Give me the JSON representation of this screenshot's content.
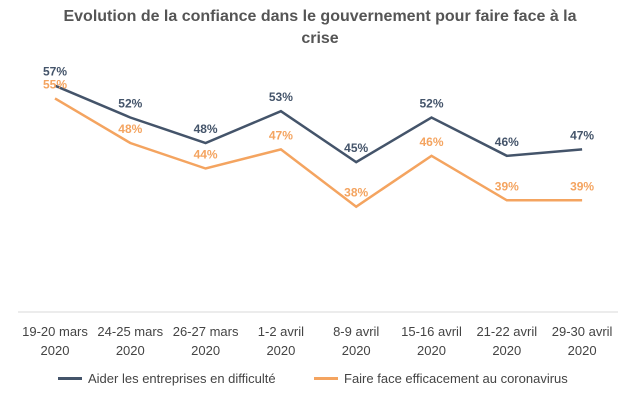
{
  "chart_data": {
    "type": "line",
    "title": "Evolution de la confiance dans le gouvernement pour faire face à la crise",
    "categories": [
      [
        "19-20 mars",
        "2020"
      ],
      [
        "24-25 mars",
        "2020"
      ],
      [
        "26-27 mars",
        "2020"
      ],
      [
        "1-2 avril",
        "2020"
      ],
      [
        "8-9 avril",
        "2020"
      ],
      [
        "15-16 avril",
        "2020"
      ],
      [
        "21-22 avril",
        "2020"
      ],
      [
        "29-30 avril",
        "2020"
      ]
    ],
    "series": [
      {
        "name": "Aider les entreprises en difficulté",
        "color": "#44546A",
        "values": [
          57,
          52,
          48,
          53,
          45,
          52,
          46,
          47
        ],
        "labels": [
          "57%",
          "52%",
          "48%",
          "53%",
          "45%",
          "52%",
          "46%",
          "47%"
        ]
      },
      {
        "name": "Faire face efficacement au coronavirus",
        "color": "#F4A460",
        "values": [
          55,
          48,
          44,
          47,
          38,
          46,
          39,
          39
        ],
        "labels": [
          "55%",
          "48%",
          "44%",
          "47%",
          "38%",
          "46%",
          "39%",
          "39%"
        ]
      }
    ],
    "ylim": [
      20,
      65
    ],
    "xlabel": "",
    "ylabel": "",
    "grid": false,
    "legend": "bottom"
  }
}
